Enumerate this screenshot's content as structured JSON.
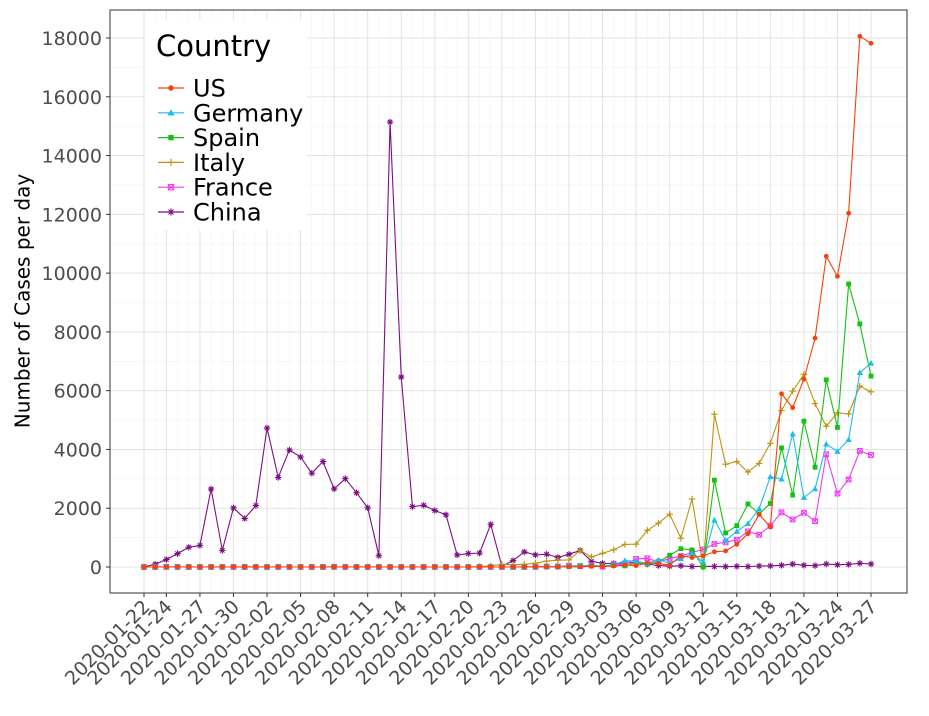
{
  "chart_data": {
    "type": "line",
    "title": "",
    "xlabel": "",
    "ylabel": "Number of Cases per day",
    "ylim": [
      -900,
      19000
    ],
    "yticks": [
      0,
      2000,
      4000,
      6000,
      8000,
      10000,
      12000,
      14000,
      16000,
      18000
    ],
    "grid": true,
    "legend": {
      "title": "Country",
      "placement": "top-left"
    },
    "x": [
      "2020-01-22",
      "2020-01-23",
      "2020-01-24",
      "2020-01-25",
      "2020-01-26",
      "2020-01-27",
      "2020-01-28",
      "2020-01-29",
      "2020-01-30",
      "2020-01-31",
      "2020-02-01",
      "2020-02-02",
      "2020-02-03",
      "2020-02-04",
      "2020-02-05",
      "2020-02-06",
      "2020-02-07",
      "2020-02-08",
      "2020-02-09",
      "2020-02-10",
      "2020-02-11",
      "2020-02-12",
      "2020-02-13",
      "2020-02-14",
      "2020-02-15",
      "2020-02-16",
      "2020-02-17",
      "2020-02-18",
      "2020-02-19",
      "2020-02-20",
      "2020-02-21",
      "2020-02-22",
      "2020-02-23",
      "2020-02-24",
      "2020-02-25",
      "2020-02-26",
      "2020-02-27",
      "2020-02-28",
      "2020-02-29",
      "2020-03-01",
      "2020-03-02",
      "2020-03-03",
      "2020-03-04",
      "2020-03-05",
      "2020-03-06",
      "2020-03-07",
      "2020-03-08",
      "2020-03-09",
      "2020-03-10",
      "2020-03-11",
      "2020-03-12",
      "2020-03-13",
      "2020-03-14",
      "2020-03-15",
      "2020-03-16",
      "2020-03-17",
      "2020-03-18",
      "2020-03-19",
      "2020-03-20",
      "2020-03-21",
      "2020-03-22",
      "2020-03-23",
      "2020-03-24",
      "2020-03-25",
      "2020-03-26",
      "2020-03-27"
    ],
    "x_tick_labels": [
      "2020-01-22",
      "2020-01-24",
      "2020-01-27",
      "2020-01-30",
      "2020-02-02",
      "2020-02-05",
      "2020-02-08",
      "2020-02-11",
      "2020-02-14",
      "2020-02-17",
      "2020-02-20",
      "2020-02-23",
      "2020-02-26",
      "2020-02-29",
      "2020-03-03",
      "2020-03-06",
      "2020-03-09",
      "2020-03-12",
      "2020-03-15",
      "2020-03-18",
      "2020-03-21",
      "2020-03-24",
      "2020-03-27"
    ],
    "series": [
      {
        "name": "US",
        "color": "#f8400c",
        "marker": "circle",
        "values": [
          0,
          0,
          1,
          0,
          3,
          0,
          0,
          0,
          0,
          2,
          1,
          0,
          3,
          0,
          0,
          0,
          0,
          0,
          0,
          0,
          1,
          0,
          1,
          0,
          0,
          0,
          0,
          0,
          0,
          0,
          2,
          0,
          0,
          0,
          0,
          6,
          1,
          0,
          8,
          6,
          23,
          20,
          31,
          68,
          45,
          140,
          116,
          65,
          376,
          322,
          382,
          516,
          548,
          772,
          1133,
          1789,
          1362,
          5894,
          5423,
          6389,
          7787,
          10571,
          9893,
          12038,
          18058,
          17821
        ]
      },
      {
        "name": "Germany",
        "color": "#1ebdf0",
        "marker": "triangle",
        "values": [
          0,
          0,
          0,
          0,
          0,
          1,
          3,
          0,
          0,
          1,
          3,
          2,
          2,
          0,
          0,
          0,
          0,
          0,
          0,
          0,
          2,
          0,
          0,
          0,
          0,
          0,
          0,
          0,
          0,
          0,
          0,
          0,
          0,
          0,
          1,
          10,
          19,
          2,
          31,
          51,
          29,
          37,
          66,
          220,
          188,
          129,
          241,
          136,
          281,
          451,
          170,
          1597,
          910,
          1210,
          1477,
          1985,
          3070,
          2993,
          4528,
          2365,
          2660,
          4183,
          3930,
          4337,
          6615,
          6933
        ]
      },
      {
        "name": "Spain",
        "color": "#14c214",
        "marker": "square",
        "values": [
          0,
          0,
          0,
          0,
          0,
          0,
          0,
          0,
          0,
          0,
          1,
          0,
          0,
          0,
          0,
          0,
          0,
          0,
          0,
          1,
          0,
          0,
          0,
          0,
          0,
          0,
          0,
          0,
          0,
          0,
          0,
          0,
          0,
          0,
          4,
          7,
          2,
          17,
          13,
          39,
          36,
          45,
          57,
          37,
          141,
          100,
          173,
          400,
          622,
          582,
          0,
          2955,
          1159,
          1407,
          2144,
          1806,
          2162,
          4053,
          2447,
          4964,
          3394,
          6368,
          4749,
          9630,
          8271,
          6496
        ]
      },
      {
        "name": "Italy",
        "color": "#bc950f",
        "marker": "plus",
        "values": [
          0,
          0,
          0,
          0,
          0,
          0,
          0,
          0,
          0,
          2,
          0,
          0,
          0,
          0,
          0,
          0,
          1,
          0,
          0,
          0,
          0,
          0,
          0,
          0,
          0,
          0,
          0,
          0,
          0,
          0,
          17,
          42,
          93,
          74,
          93,
          131,
          202,
          233,
          240,
          566,
          342,
          466,
          587,
          769,
          778,
          1247,
          1492,
          1797,
          977,
          2313,
          0,
          5198,
          3497,
          3590,
          3233,
          3526,
          4207,
          5322,
          5986,
          6557,
          5560,
          4789,
          5249,
          5210,
          6153,
          5959
        ]
      },
      {
        "name": "France",
        "color": "#f03cf0",
        "marker": "boxcross",
        "values": [
          0,
          0,
          2,
          1,
          0,
          0,
          1,
          1,
          0,
          0,
          0,
          0,
          0,
          0,
          0,
          0,
          0,
          5,
          0,
          0,
          1,
          0,
          0,
          0,
          1,
          0,
          0,
          0,
          0,
          0,
          0,
          0,
          0,
          0,
          0,
          2,
          19,
          19,
          43,
          30,
          61,
          13,
          81,
          92,
          276,
          296,
          177,
          286,
          372,
          497,
          595,
          785,
          838,
          924,
          1210,
          1097,
          1404,
          1861,
          1617,
          1847,
          1559,
          3838,
          2499,
          2978,
          3951,
          3809
        ]
      },
      {
        "name": "China",
        "color": "#7d0f82",
        "marker": "asterisk",
        "values": [
          0,
          96,
          255,
          456,
          671,
          735,
          2652,
          567,
          2013,
          1652,
          2093,
          4729,
          3046,
          3983,
          3743,
          3191,
          3590,
          2657,
          3005,
          2528,
          2016,
          386,
          15141,
          6463,
          2055,
          2100,
          1921,
          1777,
          408,
          458,
          472,
          1451,
          21,
          219,
          513,
          412,
          434,
          327,
          431,
          564,
          196,
          125,
          119,
          139,
          143,
          98,
          51,
          28,
          42,
          16,
          24,
          18,
          11,
          21,
          13,
          34,
          39,
          57,
          100,
          58,
          47,
          101,
          78,
          89,
          126,
          102
        ]
      }
    ]
  }
}
